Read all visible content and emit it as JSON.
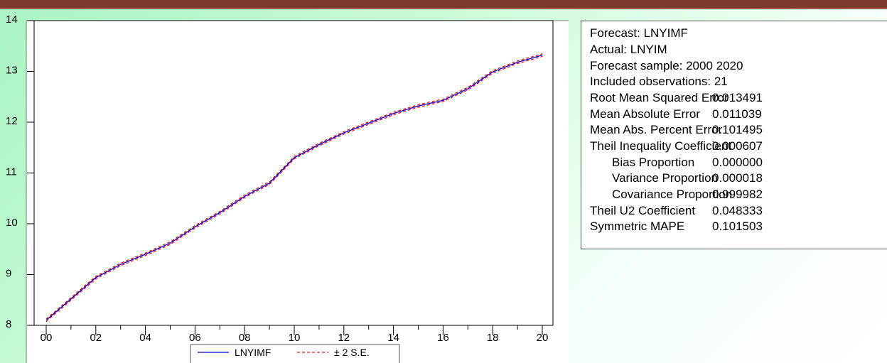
{
  "chart_data": {
    "type": "line",
    "x": [
      "00",
      "01",
      "02",
      "03",
      "04",
      "05",
      "06",
      "07",
      "08",
      "09",
      "10",
      "11",
      "12",
      "13",
      "14",
      "15",
      "16",
      "17",
      "18",
      "19",
      "20"
    ],
    "xticks": [
      "00",
      "02",
      "04",
      "06",
      "08",
      "10",
      "12",
      "14",
      "16",
      "18",
      "20"
    ],
    "ylim": [
      8,
      14
    ],
    "yticks": [
      "8",
      "9",
      "10",
      "11",
      "12",
      "13",
      "14"
    ],
    "series": [
      {
        "name": "LNYIMF",
        "color": "#0000cc",
        "values": [
          8.1,
          8.52,
          8.94,
          9.2,
          9.4,
          9.62,
          9.94,
          10.22,
          10.54,
          10.8,
          11.3,
          11.56,
          11.79,
          11.98,
          12.17,
          12.32,
          12.43,
          12.66,
          12.99,
          13.18,
          13.32
        ]
      },
      {
        "name": "± 2 S.E.",
        "color": "#e41a1c",
        "style": "dashed",
        "upper": [
          8.125,
          8.545,
          8.965,
          9.225,
          9.425,
          9.645,
          9.965,
          10.245,
          10.565,
          10.825,
          11.325,
          11.585,
          11.815,
          12.005,
          12.195,
          12.345,
          12.455,
          12.685,
          13.015,
          13.205,
          13.345
        ],
        "lower": [
          8.075,
          8.495,
          8.915,
          9.175,
          9.375,
          9.595,
          9.915,
          10.195,
          10.515,
          10.775,
          11.275,
          11.535,
          11.765,
          11.955,
          12.145,
          12.295,
          12.405,
          12.635,
          12.965,
          13.155,
          13.295
        ]
      }
    ],
    "grid": false,
    "legend_position": "bottom-center"
  },
  "legend": {
    "series1": "LNYIMF",
    "series2": "± 2 S.E."
  },
  "stats": {
    "forecast": "Forecast: LNYIMF",
    "actual": "Actual: LNYIM",
    "sample": "Forecast sample: 2000 2020",
    "included": "Included observations: 21",
    "rmse_label": "Root Mean Squared Error",
    "rmse_value": "0.013491",
    "mae_label": "Mean Absolute Error",
    "mae_value": "0.011039",
    "mape_label": "Mean Abs. Percent Error",
    "mape_value": "0.101495",
    "theil_label": "Theil Inequality Coefficient",
    "theil_value": "0.000607",
    "bias_label": "Bias Proportion",
    "bias_value": "0.000000",
    "variance_label": "Variance Proportion",
    "variance_value": "0.000018",
    "covariance_label": "Covariance Proportion",
    "covariance_value": "0.999982",
    "u2_label": "Theil U2 Coefficient",
    "u2_value": "0.048333",
    "smape_label": "Symmetric MAPE",
    "smape_value": "0.101503"
  },
  "colors": {
    "background_start": "#a9f4c4",
    "top_bar": "#7b3a2c",
    "forecast_line": "#0000cc",
    "se_band": "#e41a1c"
  }
}
